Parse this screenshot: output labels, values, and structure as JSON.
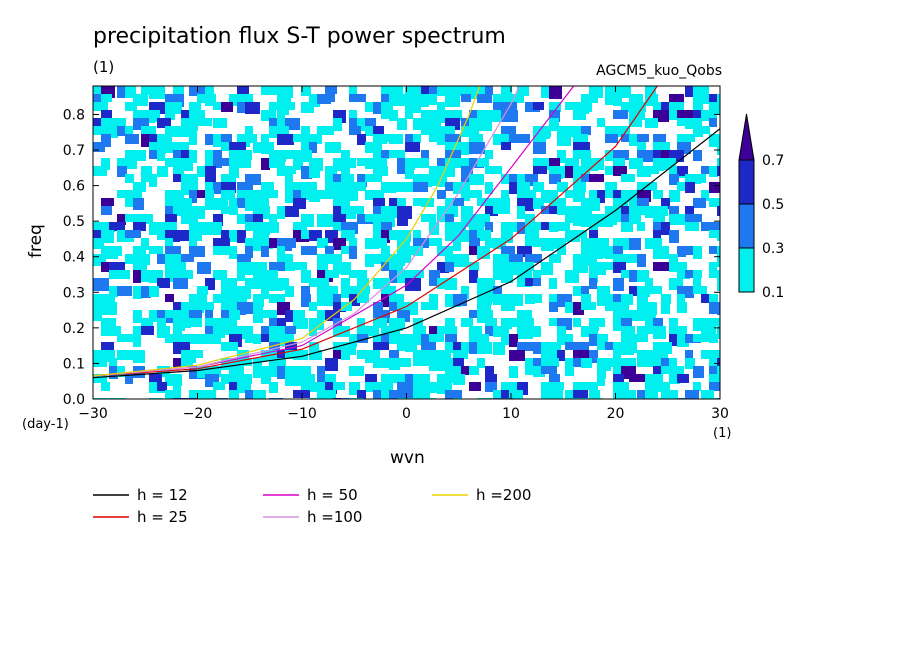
{
  "chart_data": {
    "type": "heatmap",
    "title": "precipitation flux S-T power spectrum",
    "subtitle": "AGCM5_kuo_Qobs",
    "unit_label": "(1)",
    "xlabel": "wvn",
    "ylabel": "freq",
    "y_unit": "(day-1)",
    "x_unit": "(1)",
    "xlim": [
      -30,
      30
    ],
    "ylim": [
      0,
      0.88
    ],
    "x_ticks": [
      -30,
      -20,
      -10,
      0,
      10,
      20,
      30
    ],
    "y_ticks": [
      0.0,
      0.1,
      0.2,
      0.3,
      0.4,
      0.5,
      0.6,
      0.7,
      0.8
    ],
    "x_tick_labels": [
      "-30",
      "-20",
      "-10",
      "0",
      "10",
      "20",
      "30"
    ],
    "y_tick_labels": [
      "0.0",
      "0.1",
      "0.2",
      "0.3",
      "0.4",
      "0.5",
      "0.6",
      "0.7",
      "0.8"
    ],
    "colorbar": {
      "levels": [
        0.1,
        0.3,
        0.5,
        0.7
      ],
      "labels": [
        "0.1",
        "0.3",
        "0.5",
        "0.7"
      ],
      "colors": [
        "#00f0f0",
        "#1e78f0",
        "#1e28c8",
        "#3c0096"
      ]
    },
    "series": [
      {
        "name": "h = 12",
        "color": "#000000",
        "points": [
          [
            -30,
            0.06
          ],
          [
            -20,
            0.08
          ],
          [
            -10,
            0.12
          ],
          [
            0,
            0.2
          ],
          [
            10,
            0.33
          ],
          [
            20,
            0.53
          ],
          [
            30,
            0.76
          ]
        ]
      },
      {
        "name": "h = 25",
        "color": "#e00000",
        "points": [
          [
            -30,
            0.065
          ],
          [
            -20,
            0.085
          ],
          [
            -10,
            0.14
          ],
          [
            0,
            0.26
          ],
          [
            10,
            0.45
          ],
          [
            20,
            0.71
          ],
          [
            24,
            0.88
          ]
        ]
      },
      {
        "name": "h = 50",
        "color": "#d800c8",
        "points": [
          [
            -30,
            0.065
          ],
          [
            -20,
            0.09
          ],
          [
            -10,
            0.15
          ],
          [
            0,
            0.32
          ],
          [
            5,
            0.46
          ],
          [
            10,
            0.65
          ],
          [
            16,
            0.88
          ]
        ]
      },
      {
        "name": "h =100",
        "color": "#d890e0",
        "points": [
          [
            -30,
            0.065
          ],
          [
            -20,
            0.09
          ],
          [
            -10,
            0.16
          ],
          [
            -5,
            0.24
          ],
          [
            0,
            0.37
          ],
          [
            5,
            0.58
          ],
          [
            10,
            0.83
          ],
          [
            10.8,
            0.88
          ]
        ]
      },
      {
        "name": "h =200",
        "color": "#e8d000",
        "points": [
          [
            -30,
            0.065
          ],
          [
            -20,
            0.095
          ],
          [
            -10,
            0.17
          ],
          [
            -5,
            0.28
          ],
          [
            0,
            0.45
          ],
          [
            3,
            0.6
          ],
          [
            6,
            0.8
          ],
          [
            7,
            0.88
          ]
        ]
      }
    ]
  }
}
